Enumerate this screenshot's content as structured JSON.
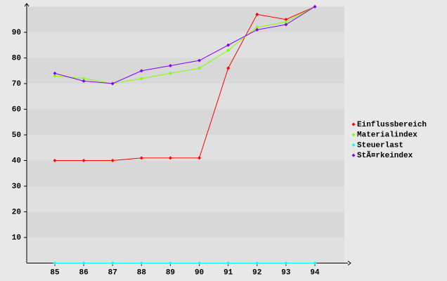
{
  "chart_data": {
    "type": "line",
    "categories": [
      "85",
      "86",
      "87",
      "88",
      "89",
      "90",
      "91",
      "92",
      "93",
      "94"
    ],
    "series": [
      {
        "name": "Einflussbereich",
        "color": "#ff0000",
        "values": [
          40,
          40,
          40,
          41,
          41,
          41,
          76,
          97,
          95,
          100
        ]
      },
      {
        "name": "Materialindex",
        "color": "#80ff00",
        "values": [
          73,
          72,
          70,
          72,
          74,
          76,
          83,
          92,
          94,
          100
        ]
      },
      {
        "name": "Steuerlast",
        "color": "#00ffff",
        "values": [
          0,
          0,
          0,
          0,
          0,
          0,
          0,
          0,
          0,
          0
        ]
      },
      {
        "name": "StÃ¤rkeindex",
        "color": "#8000ff",
        "values": [
          74,
          71,
          70,
          75,
          77,
          79,
          85,
          91,
          93,
          100
        ]
      }
    ],
    "ylim": [
      0,
      100
    ],
    "yticks": [
      10,
      20,
      30,
      40,
      50,
      60,
      70,
      80,
      90
    ],
    "grid": true,
    "legend": "right"
  }
}
